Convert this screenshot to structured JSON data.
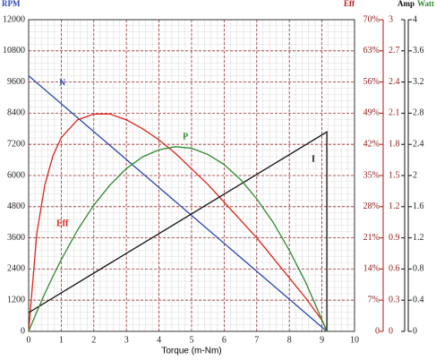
{
  "chart_data": {
    "type": "line",
    "x_label": "Torque (m-Nm)",
    "y_label": "RPM",
    "y2_label": "Eff",
    "y3_label": "Amp",
    "y4_label": "Watt",
    "xlim": [
      0,
      10
    ],
    "xticks": [
      0,
      1,
      2,
      3,
      4,
      5,
      6,
      7,
      8,
      9,
      10
    ],
    "ylim": [
      0,
      12000
    ],
    "yticks": [
      0,
      1200,
      2400,
      3600,
      4800,
      6000,
      7200,
      8400,
      9600,
      10800,
      12000
    ],
    "y2lim": [
      0,
      70
    ],
    "y2ticks": [
      0,
      {
        "value": 7,
        "label": "7%"
      },
      {
        "value": 14,
        "label": "14%"
      },
      {
        "value": 21,
        "label": "21%"
      },
      {
        "value": 28,
        "label": "28%"
      },
      {
        "value": 35,
        "label": "35%"
      },
      {
        "value": 42,
        "label": "42%"
      },
      {
        "value": 49,
        "label": "49%"
      },
      {
        "value": 56,
        "label": "56%"
      },
      {
        "value": 63,
        "label": "63%"
      },
      {
        "value": 70,
        "label": "70%"
      }
    ],
    "y3lim": [
      0,
      3
    ],
    "y3ticks": [
      0,
      0.3,
      0.6,
      0.9,
      1.2,
      1.5,
      1.8,
      2.1,
      2.4,
      2.7,
      3
    ],
    "y4lim": [
      0,
      4
    ],
    "y4ticks": [
      0,
      0.4,
      0.8,
      1.2,
      1.6,
      2,
      2.4,
      2.8,
      3.2,
      3.6,
      4
    ],
    "grid": true,
    "series": [
      {
        "name": "N",
        "color": "#2a48b0",
        "axis": "y",
        "x": [
          0,
          9.15
        ],
        "values": [
          9840,
          0
        ]
      },
      {
        "name": "Eff",
        "color": "#d8261a",
        "axis": "y2",
        "x": [
          0,
          0.25,
          0.5,
          0.75,
          1,
          1.5,
          2,
          2.5,
          3,
          3.5,
          4,
          4.5,
          5,
          5.5,
          6,
          6.5,
          7,
          7.5,
          8,
          8.5,
          9,
          9.15
        ],
        "values": [
          0,
          22,
          33,
          39.5,
          43.5,
          47.5,
          48.8,
          48.8,
          47.5,
          45.5,
          43,
          40,
          36.5,
          33,
          29,
          25,
          21,
          16.5,
          12,
          7.5,
          2.5,
          0
        ]
      },
      {
        "name": "I",
        "color": "#111111",
        "axis": "y3",
        "x": [
          0,
          9.15,
          9.15
        ],
        "values": [
          0.18,
          1.92,
          0
        ]
      },
      {
        "name": "P",
        "color": "#2e8b2e",
        "axis": "y4",
        "x": [
          0,
          0.25,
          0.5,
          0.75,
          1,
          1.5,
          2,
          2.5,
          3,
          3.5,
          4,
          4.5,
          5,
          5.5,
          6,
          6.5,
          7,
          7.5,
          8,
          8.5,
          9,
          9.15
        ],
        "values": [
          0,
          0.25,
          0.49,
          0.71,
          0.92,
          1.3,
          1.62,
          1.88,
          2.09,
          2.24,
          2.33,
          2.37,
          2.35,
          2.27,
          2.14,
          1.95,
          1.7,
          1.4,
          1.04,
          0.63,
          0.15,
          0
        ]
      }
    ]
  }
}
